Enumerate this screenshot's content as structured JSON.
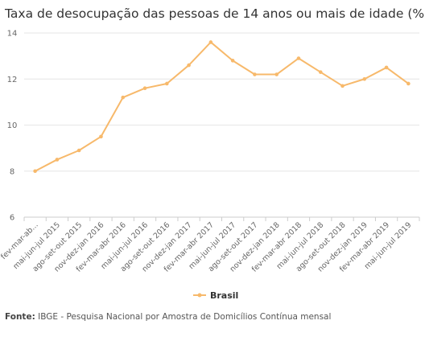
{
  "title": "Taxa de desocupação das pessoas de 14 anos ou mais de idade (%)",
  "footer": {
    "label": "Fonte:",
    "text": "IBGE - Pesquisa Nacional por Amostra de Domicílios Contínua mensal"
  },
  "chart_data": {
    "type": "line",
    "title": "Taxa de desocupação das pessoas de 14 anos ou mais de idade (%)",
    "xlabel": "",
    "ylabel": "",
    "ylim": [
      6,
      14
    ],
    "yticks": [
      6,
      8,
      10,
      12,
      14
    ],
    "grid": true,
    "legend": "bottom-center",
    "categories": [
      "fev-mar-ab...",
      "mai-jun-jul 2015",
      "ago-set-out 2015",
      "nov-dez-jan 2016",
      "fev-mar-abr 2016",
      "mai-jun-jul 2016",
      "ago-set-out 2016",
      "nov-dez-jan 2017",
      "fev-mar-abr 2017",
      "mai-jun-jul 2017",
      "ago-set-out 2017",
      "nov-dez-jan 2018",
      "fev-mar-abr 2018",
      "mai-jun-jul 2018",
      "ago-set-out 2018",
      "nov-dez-jan 2019",
      "fev-mar-abr 2019",
      "mai-jun-jul 2019"
    ],
    "series": [
      {
        "name": "Brasil",
        "color": "#f7b96b",
        "values": [
          8.0,
          8.5,
          8.9,
          9.5,
          11.2,
          11.6,
          11.8,
          12.6,
          13.6,
          12.8,
          12.2,
          12.2,
          12.9,
          12.3,
          11.7,
          12.0,
          12.5,
          11.8
        ]
      }
    ]
  }
}
